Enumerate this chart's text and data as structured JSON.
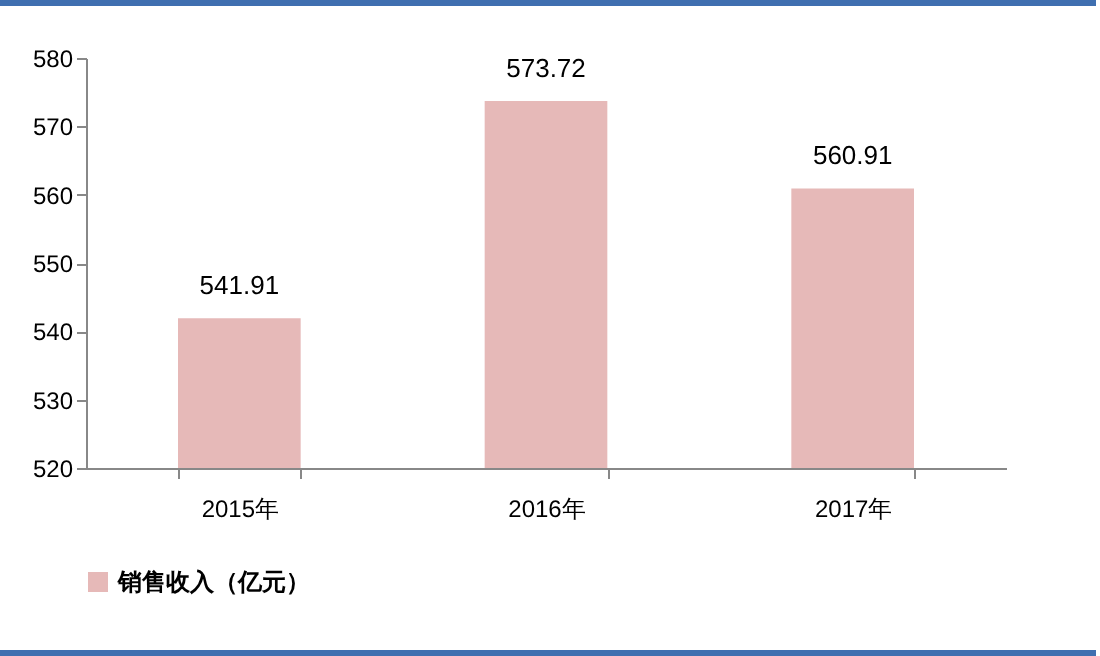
{
  "chart_data": {
    "type": "bar",
    "categories": [
      "2015年",
      "2016年",
      "2017年"
    ],
    "series": [
      {
        "name": "销售收入（亿元）",
        "color": "#e6b9b8",
        "values": [
          541.91,
          573.72,
          560.91
        ]
      }
    ],
    "ylim": [
      520,
      580
    ],
    "yticks": [
      520,
      530,
      540,
      550,
      560,
      570,
      580
    ],
    "grid": false,
    "legend": "bottom",
    "data_labels": true
  }
}
